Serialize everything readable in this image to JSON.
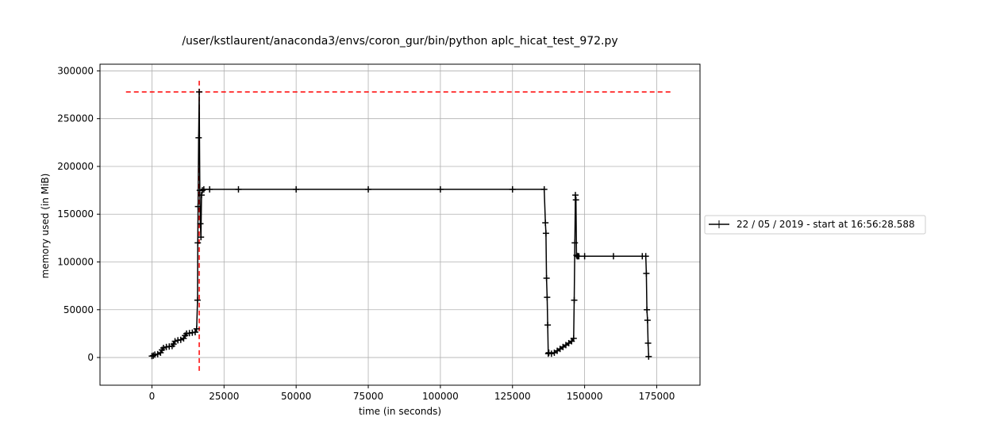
{
  "chart_data": {
    "type": "line",
    "title": "/user/kstlaurent/anaconda3/envs/coron_gur/bin/python aplc_hicat_test_972.py",
    "xlabel": "time (in seconds)",
    "ylabel": "memory used (in MiB)",
    "xlim": [
      -18000,
      190000
    ],
    "ylim": [
      -29000,
      307000
    ],
    "xticks": [
      0,
      25000,
      50000,
      75000,
      100000,
      125000,
      150000,
      175000
    ],
    "xtick_labels": [
      "0",
      "25000",
      "50000",
      "75000",
      "100000",
      "125000",
      "150000",
      "175000"
    ],
    "yticks": [
      0,
      50000,
      100000,
      150000,
      200000,
      250000,
      300000
    ],
    "ytick_labels": [
      "0",
      "50000",
      "100000",
      "150000",
      "200000",
      "250000",
      "300000"
    ],
    "grid": true,
    "legend_position": "outside-right",
    "series": [
      {
        "name": "22 / 05 / 2019 - start at 16:56:28.588",
        "color": "#000000",
        "marker": "+",
        "x": [
          0,
          500,
          1000,
          2000,
          3000,
          3500,
          4000,
          5000,
          6000,
          7000,
          7500,
          8000,
          9000,
          10000,
          11000,
          11500,
          12000,
          13000,
          14000,
          15000,
          15500,
          15800,
          15900,
          16000,
          16200,
          16400,
          16600,
          16800,
          17000,
          17200,
          17500,
          18000,
          20000,
          30000,
          50000,
          75000,
          100000,
          125000,
          136000,
          136400,
          136600,
          136800,
          137000,
          137200,
          137400,
          137600,
          138500,
          139500,
          140500,
          141500,
          142500,
          143500,
          144500,
          145500,
          146200,
          146400,
          146600,
          146800,
          147000,
          147200,
          147400,
          147600,
          148000,
          150000,
          160000,
          170000,
          171200,
          171400,
          171600,
          171800,
          172000,
          172200
        ],
        "y": [
          1500,
          2000,
          3000,
          3500,
          5000,
          8000,
          10000,
          11000,
          11500,
          12000,
          14000,
          17000,
          18000,
          18500,
          20000,
          23000,
          25000,
          25500,
          26000,
          26500,
          30000,
          60000,
          120000,
          158000,
          230000,
          278000,
          175000,
          140000,
          126000,
          170000,
          175000,
          176000,
          176000,
          176000,
          176000,
          176000,
          176000,
          176000,
          176000,
          141000,
          130000,
          83000,
          63000,
          34000,
          4000,
          5000,
          4000,
          5000,
          7000,
          9000,
          11000,
          13000,
          15000,
          17000,
          20000,
          60000,
          120000,
          170000,
          165000,
          107000,
          106000,
          106000,
          106000,
          106000,
          106000,
          106000,
          106000,
          88000,
          50000,
          39000,
          15000,
          1000
        ]
      }
    ],
    "annotations": [
      {
        "kind": "hline",
        "y": 278000,
        "x_from": -9000,
        "x_to": 180000,
        "color": "#ff0000",
        "style": "dashed"
      },
      {
        "kind": "vline",
        "x": 16400,
        "y_from": -14000,
        "y_to": 292000,
        "color": "#ff0000",
        "style": "dashed"
      }
    ]
  },
  "legend": {
    "label": "22 / 05 / 2019 - start at 16:56:28.588"
  }
}
